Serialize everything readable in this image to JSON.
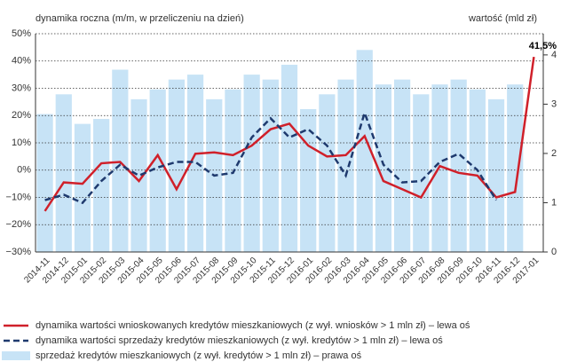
{
  "chart_data": {
    "type": "bar_line",
    "ylabel": "dynamika roczna (m/m, w przeliczeniu na dzień)",
    "y2label": "wartość (mld zł)",
    "categories": [
      "2014-11",
      "2014-12",
      "2015-01",
      "2015-02",
      "2015-03",
      "2015-04",
      "2015-05",
      "2015-06",
      "2015-07",
      "2015-08",
      "2015-09",
      "2015-10",
      "2015-11",
      "2015-12",
      "2016-01",
      "2016-02",
      "2016-03",
      "2016-04",
      "2016-05",
      "2016-06",
      "2016-07",
      "2016-08",
      "2016-09",
      "2016-10",
      "2016-11",
      "2016-12",
      "2017-01"
    ],
    "series": [
      {
        "name": "dynamika wartości wnioskowanych kredytów mieszkaniowych (z wył. wniosków > 1 mln zł) – lewa oś",
        "type": "line",
        "color": "#d0202a",
        "values": [
          -15,
          -4.5,
          -5,
          2.5,
          3,
          -4,
          5.5,
          -7,
          6,
          6.5,
          5.5,
          9,
          15,
          17,
          9,
          5,
          5.5,
          12.5,
          -4,
          -7,
          -10,
          1.5,
          -1,
          -2,
          -10,
          -8,
          41.5
        ],
        "value_labels": [
          null,
          null,
          null,
          null,
          null,
          null,
          null,
          null,
          null,
          null,
          null,
          null,
          null,
          null,
          null,
          null,
          null,
          null,
          null,
          null,
          null,
          null,
          null,
          null,
          null,
          null,
          "41,5%"
        ]
      },
      {
        "name": "dynamika wartości sprzedaży kredytów mieszkaniowych (z wył. kredytów > 1 mln zł) – lewa oś",
        "type": "dashed",
        "color": "#1f3a6e",
        "values": [
          -11,
          -9,
          -12,
          -4,
          2,
          -2,
          1,
          3,
          3,
          -2,
          -1,
          12,
          19,
          12,
          15,
          9,
          -2,
          21,
          2,
          -4.5,
          -4,
          3,
          6,
          0,
          -11,
          null,
          null
        ]
      },
      {
        "name": "sprzedaż kredytów mieszkaniowych (z wył. kredytów > 1 mln zł) – prawa oś",
        "type": "bar",
        "axis": "y2",
        "color": "#c7e3f6",
        "values": [
          2.8,
          3.2,
          2.6,
          2.7,
          3.7,
          3.1,
          3.3,
          3.5,
          3.6,
          3.1,
          3.3,
          3.6,
          3.5,
          3.8,
          2.9,
          3.2,
          3.5,
          4.1,
          3.4,
          3.5,
          3.2,
          3.4,
          3.5,
          3.3,
          3.1,
          3.4,
          null
        ]
      }
    ],
    "ylim": [
      -30,
      50
    ],
    "yticks": [
      {
        "value": -30,
        "label": "−30%"
      },
      {
        "value": -20,
        "label": "−20%"
      },
      {
        "value": -10,
        "label": "−10%"
      },
      {
        "value": 0,
        "label": "0%"
      },
      {
        "value": 10,
        "label": "10%"
      },
      {
        "value": 20,
        "label": "20%"
      },
      {
        "value": 30,
        "label": "30%"
      },
      {
        "value": 40,
        "label": "40%"
      },
      {
        "value": 50,
        "label": "50%"
      }
    ],
    "y2lim": [
      0,
      4.43
    ],
    "y2ticks": [
      0,
      1,
      2,
      3,
      4
    ],
    "grid": true
  }
}
